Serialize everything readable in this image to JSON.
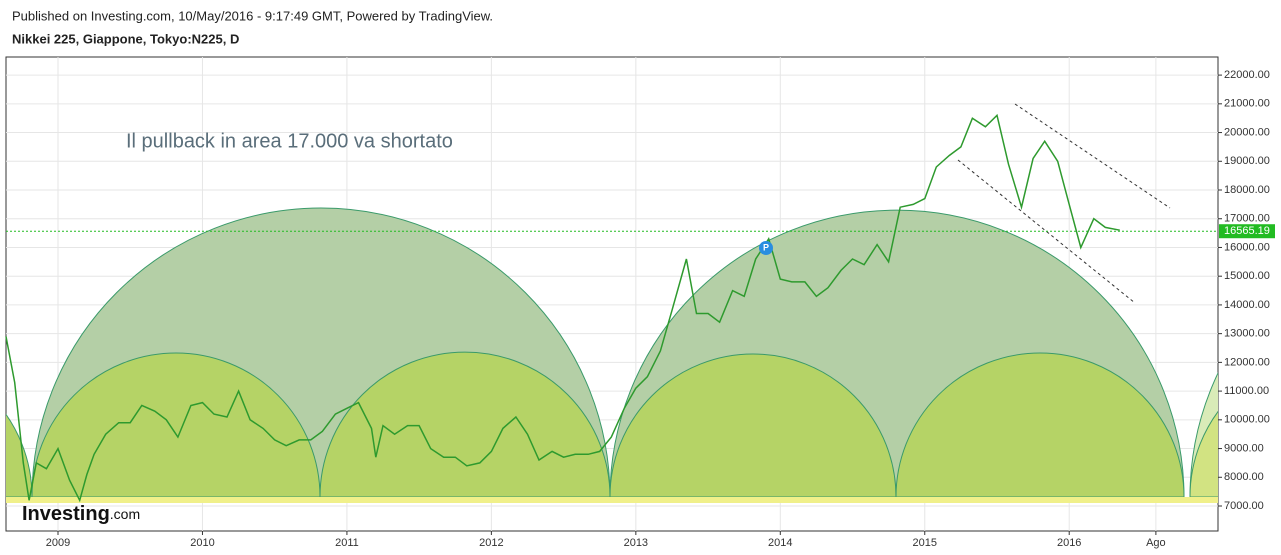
{
  "header": {
    "published": "Published on Investing.com, 10/May/2016 - 9:17:49 GMT, Powered by TradingView.",
    "symbol": "Nikkei 225, Giappone, Tokyo:N225, D"
  },
  "logo": {
    "brand": "Investing",
    "suffix": ".com"
  },
  "chart_data": {
    "type": "line",
    "annotation": "Il pullback in area 17.000 va shortato",
    "marker_label": "P",
    "level": {
      "value": 16565.19,
      "color": "#22bb22"
    },
    "x": [
      2008.64,
      2008.7,
      2008.76,
      2008.8,
      2008.85,
      2008.92,
      2009.0,
      2009.08,
      2009.15,
      2009.2,
      2009.25,
      2009.33,
      2009.42,
      2009.5,
      2009.58,
      2009.67,
      2009.75,
      2009.83,
      2009.92,
      2010.0,
      2010.08,
      2010.17,
      2010.25,
      2010.33,
      2010.42,
      2010.5,
      2010.58,
      2010.67,
      2010.75,
      2010.83,
      2010.92,
      2011.0,
      2011.08,
      2011.17,
      2011.2,
      2011.25,
      2011.33,
      2011.42,
      2011.5,
      2011.58,
      2011.67,
      2011.75,
      2011.83,
      2011.92,
      2012.0,
      2012.08,
      2012.17,
      2012.25,
      2012.33,
      2012.42,
      2012.5,
      2012.58,
      2012.67,
      2012.75,
      2012.83,
      2012.92,
      2013.0,
      2013.08,
      2013.17,
      2013.25,
      2013.35,
      2013.42,
      2013.5,
      2013.58,
      2013.67,
      2013.75,
      2013.83,
      2013.92,
      2014.0,
      2014.08,
      2014.17,
      2014.25,
      2014.33,
      2014.42,
      2014.5,
      2014.58,
      2014.67,
      2014.75,
      2014.83,
      2014.92,
      2015.0,
      2015.08,
      2015.17,
      2015.25,
      2015.33,
      2015.42,
      2015.5,
      2015.58,
      2015.67,
      2015.75,
      2015.83,
      2015.92,
      2016.0,
      2016.08,
      2016.17,
      2016.25,
      2016.35
    ],
    "series": [
      {
        "color": "#2e9a2e",
        "values": [
          12900,
          11300,
          8500,
          7200,
          8500,
          8300,
          9000,
          7900,
          7200,
          8100,
          8800,
          9500,
          9900,
          9900,
          10500,
          10300,
          10000,
          9400,
          10500,
          10600,
          10200,
          10100,
          11000,
          10000,
          9700,
          9300,
          9100,
          9300,
          9300,
          9600,
          10200,
          10400,
          10600,
          9700,
          8700,
          9800,
          9500,
          9800,
          9800,
          9000,
          8700,
          8700,
          8400,
          8500,
          8900,
          9700,
          10100,
          9500,
          8600,
          8900,
          8700,
          8800,
          8800,
          8900,
          9400,
          10400,
          11100,
          11500,
          12400,
          13800,
          15600,
          13700,
          13700,
          13400,
          14500,
          14300,
          15600,
          16300,
          14900,
          14800,
          14800,
          14300,
          14600,
          15200,
          15600,
          15400,
          16100,
          15500,
          17400,
          17500,
          17700,
          18800,
          19200,
          19500,
          20500,
          20200,
          20600,
          18900,
          17400,
          19100,
          19700,
          19000,
          17500,
          16000,
          17000,
          16700,
          16600
        ]
      }
    ],
    "xlim": [
      2008.64,
      2017.03
    ],
    "xticks": [
      2009,
      2010,
      2011,
      2012,
      2013,
      2014,
      2015,
      2016,
      {
        "value": 2016.6,
        "label": "Ago"
      }
    ],
    "ylim": [
      6130,
      22630
    ],
    "yticks": [
      {
        "value": 7000,
        "label": "7000.00"
      },
      {
        "value": 8000,
        "label": "8000.00"
      },
      {
        "value": 9000,
        "label": "9000.00"
      },
      {
        "value": 10000,
        "label": "10000.00"
      },
      {
        "value": 11000,
        "label": "11000.00"
      },
      {
        "value": 12000,
        "label": "12000.00"
      },
      {
        "value": 13000,
        "label": "13000.00"
      },
      {
        "value": 14000,
        "label": "14000.00"
      },
      {
        "value": 15000,
        "label": "15000.00"
      },
      {
        "value": 16000,
        "label": "16000.00"
      },
      {
        "value": 17000,
        "label": "17000.00"
      },
      {
        "value": 18000,
        "label": "18000.00"
      },
      {
        "value": 19000,
        "label": "19000.00"
      },
      {
        "value": 20000,
        "label": "20000.00"
      },
      {
        "value": 21000,
        "label": "21000.00"
      },
      {
        "value": 22000,
        "label": "22000.00"
      }
    ],
    "grid": true
  }
}
